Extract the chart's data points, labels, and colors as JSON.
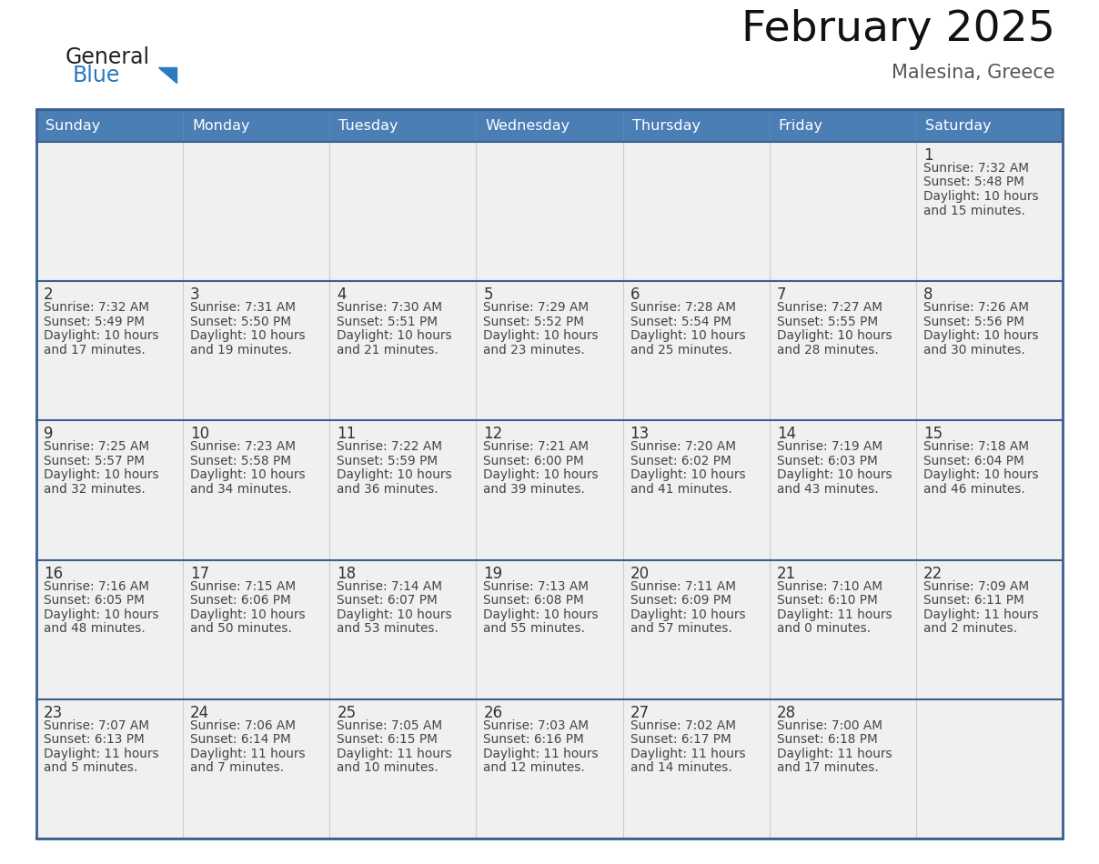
{
  "title": "February 2025",
  "subtitle": "Malesina, Greece",
  "days_of_week": [
    "Sunday",
    "Monday",
    "Tuesday",
    "Wednesday",
    "Thursday",
    "Friday",
    "Saturday"
  ],
  "header_bg": "#4a7eb5",
  "header_text": "#ffffff",
  "cell_bg": "#f0f0f0",
  "row_separator_color": "#3a6090",
  "col_separator_color": "#cccccc",
  "border_color": "#3a6090",
  "day_num_color": "#333333",
  "text_color": "#444444",
  "logo_general_color": "#222222",
  "logo_blue_color": "#2a7abf",
  "calendar_data": [
    [
      null,
      null,
      null,
      null,
      null,
      null,
      {
        "day": 1,
        "sunrise": "7:32 AM",
        "sunset": "5:48 PM",
        "daylight_hours": 10,
        "daylight_minutes": 15
      }
    ],
    [
      {
        "day": 2,
        "sunrise": "7:32 AM",
        "sunset": "5:49 PM",
        "daylight_hours": 10,
        "daylight_minutes": 17
      },
      {
        "day": 3,
        "sunrise": "7:31 AM",
        "sunset": "5:50 PM",
        "daylight_hours": 10,
        "daylight_minutes": 19
      },
      {
        "day": 4,
        "sunrise": "7:30 AM",
        "sunset": "5:51 PM",
        "daylight_hours": 10,
        "daylight_minutes": 21
      },
      {
        "day": 5,
        "sunrise": "7:29 AM",
        "sunset": "5:52 PM",
        "daylight_hours": 10,
        "daylight_minutes": 23
      },
      {
        "day": 6,
        "sunrise": "7:28 AM",
        "sunset": "5:54 PM",
        "daylight_hours": 10,
        "daylight_minutes": 25
      },
      {
        "day": 7,
        "sunrise": "7:27 AM",
        "sunset": "5:55 PM",
        "daylight_hours": 10,
        "daylight_minutes": 28
      },
      {
        "day": 8,
        "sunrise": "7:26 AM",
        "sunset": "5:56 PM",
        "daylight_hours": 10,
        "daylight_minutes": 30
      }
    ],
    [
      {
        "day": 9,
        "sunrise": "7:25 AM",
        "sunset": "5:57 PM",
        "daylight_hours": 10,
        "daylight_minutes": 32
      },
      {
        "day": 10,
        "sunrise": "7:23 AM",
        "sunset": "5:58 PM",
        "daylight_hours": 10,
        "daylight_minutes": 34
      },
      {
        "day": 11,
        "sunrise": "7:22 AM",
        "sunset": "5:59 PM",
        "daylight_hours": 10,
        "daylight_minutes": 36
      },
      {
        "day": 12,
        "sunrise": "7:21 AM",
        "sunset": "6:00 PM",
        "daylight_hours": 10,
        "daylight_minutes": 39
      },
      {
        "day": 13,
        "sunrise": "7:20 AM",
        "sunset": "6:02 PM",
        "daylight_hours": 10,
        "daylight_minutes": 41
      },
      {
        "day": 14,
        "sunrise": "7:19 AM",
        "sunset": "6:03 PM",
        "daylight_hours": 10,
        "daylight_minutes": 43
      },
      {
        "day": 15,
        "sunrise": "7:18 AM",
        "sunset": "6:04 PM",
        "daylight_hours": 10,
        "daylight_minutes": 46
      }
    ],
    [
      {
        "day": 16,
        "sunrise": "7:16 AM",
        "sunset": "6:05 PM",
        "daylight_hours": 10,
        "daylight_minutes": 48
      },
      {
        "day": 17,
        "sunrise": "7:15 AM",
        "sunset": "6:06 PM",
        "daylight_hours": 10,
        "daylight_minutes": 50
      },
      {
        "day": 18,
        "sunrise": "7:14 AM",
        "sunset": "6:07 PM",
        "daylight_hours": 10,
        "daylight_minutes": 53
      },
      {
        "day": 19,
        "sunrise": "7:13 AM",
        "sunset": "6:08 PM",
        "daylight_hours": 10,
        "daylight_minutes": 55
      },
      {
        "day": 20,
        "sunrise": "7:11 AM",
        "sunset": "6:09 PM",
        "daylight_hours": 10,
        "daylight_minutes": 57
      },
      {
        "day": 21,
        "sunrise": "7:10 AM",
        "sunset": "6:10 PM",
        "daylight_hours": 11,
        "daylight_minutes": 0
      },
      {
        "day": 22,
        "sunrise": "7:09 AM",
        "sunset": "6:11 PM",
        "daylight_hours": 11,
        "daylight_minutes": 2
      }
    ],
    [
      {
        "day": 23,
        "sunrise": "7:07 AM",
        "sunset": "6:13 PM",
        "daylight_hours": 11,
        "daylight_minutes": 5
      },
      {
        "day": 24,
        "sunrise": "7:06 AM",
        "sunset": "6:14 PM",
        "daylight_hours": 11,
        "daylight_minutes": 7
      },
      {
        "day": 25,
        "sunrise": "7:05 AM",
        "sunset": "6:15 PM",
        "daylight_hours": 11,
        "daylight_minutes": 10
      },
      {
        "day": 26,
        "sunrise": "7:03 AM",
        "sunset": "6:16 PM",
        "daylight_hours": 11,
        "daylight_minutes": 12
      },
      {
        "day": 27,
        "sunrise": "7:02 AM",
        "sunset": "6:17 PM",
        "daylight_hours": 11,
        "daylight_minutes": 14
      },
      {
        "day": 28,
        "sunrise": "7:00 AM",
        "sunset": "6:18 PM",
        "daylight_hours": 11,
        "daylight_minutes": 17
      },
      null
    ]
  ]
}
